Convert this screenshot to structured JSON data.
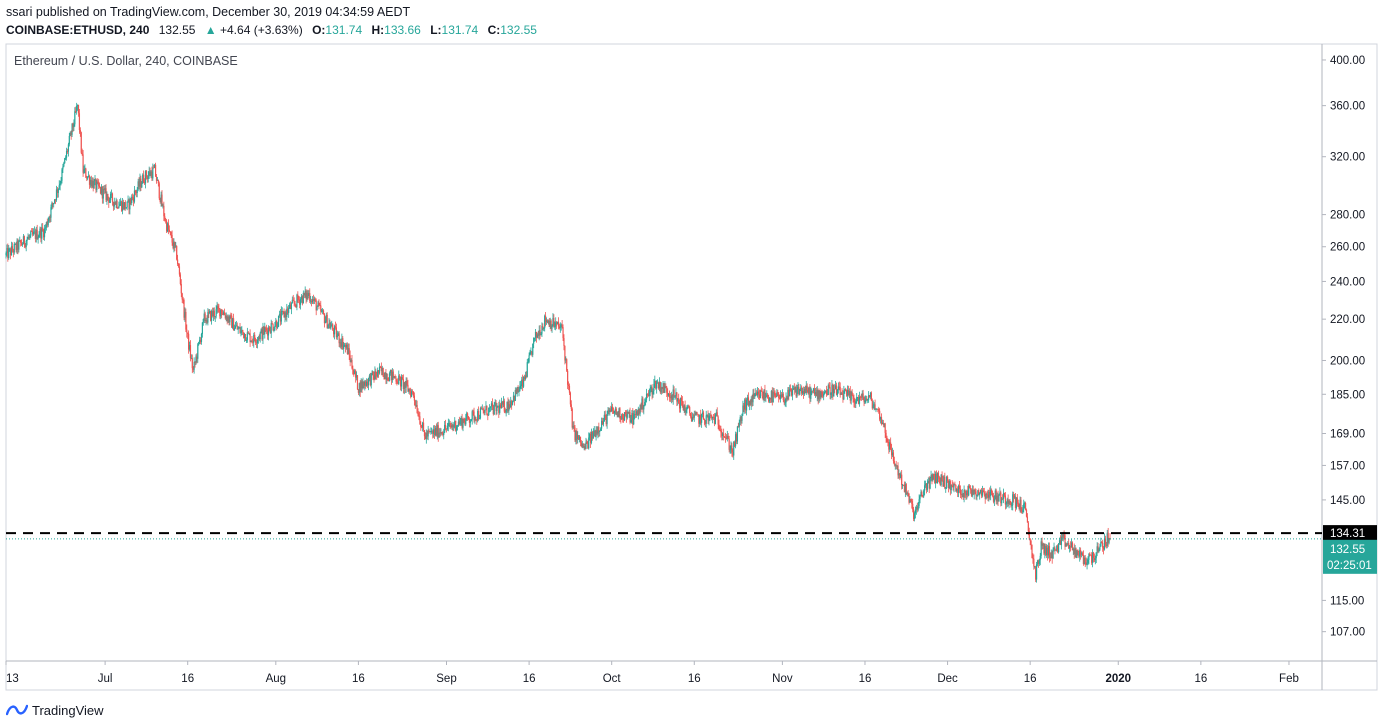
{
  "header": {
    "published": "ssari published on TradingView.com, December 30, 2019 04:34:59 AEDT",
    "symbol": "COINBASE:ETHUSD, 240",
    "last": "132.55",
    "change": "+4.64 (+3.63%)",
    "o_label": "O:",
    "o_value": "131.74",
    "h_label": "H:",
    "h_value": "133.66",
    "l_label": "L:",
    "l_value": "131.74",
    "c_label": "C:",
    "c_value": "132.55"
  },
  "chart_title": "Ethereum / U.S. Dollar, 240, COINBASE",
  "footer": {
    "brand": "TradingView"
  },
  "colors": {
    "up": "#26a69a",
    "down": "#ef5350",
    "resistance_line": "#000000",
    "price_line": "#26a69a"
  },
  "chart_data": {
    "type": "candlestick",
    "scale": "log",
    "ylim": [
      100,
      415
    ],
    "y_ticks": [
      400,
      360,
      320,
      280,
      260,
      240,
      220,
      200,
      185,
      169,
      157,
      145,
      115,
      107
    ],
    "y_tick_labels": [
      "400.00",
      "360.00",
      "320.00",
      "280.00",
      "260.00",
      "240.00",
      "220.00",
      "200.00",
      "185.00",
      "169.00",
      "157.00",
      "145.00",
      "115.00",
      "107.00"
    ],
    "x_range": [
      "2019-06-13",
      "2020-02-07"
    ],
    "x_ticks": [
      {
        "date": "2019-06-13",
        "label": "13"
      },
      {
        "date": "2019-07-01",
        "label": "Jul"
      },
      {
        "date": "2019-07-16",
        "label": "16"
      },
      {
        "date": "2019-08-01",
        "label": "Aug"
      },
      {
        "date": "2019-08-16",
        "label": "16"
      },
      {
        "date": "2019-09-01",
        "label": "Sep"
      },
      {
        "date": "2019-09-16",
        "label": "16"
      },
      {
        "date": "2019-10-01",
        "label": "Oct"
      },
      {
        "date": "2019-10-16",
        "label": "16"
      },
      {
        "date": "2019-11-01",
        "label": "Nov"
      },
      {
        "date": "2019-11-16",
        "label": "16"
      },
      {
        "date": "2019-12-01",
        "label": "Dec"
      },
      {
        "date": "2019-12-16",
        "label": "16"
      },
      {
        "date": "2020-01-01",
        "label": "2020",
        "bold": true
      },
      {
        "date": "2020-01-16",
        "label": "16"
      },
      {
        "date": "2020-02-01",
        "label": "Feb"
      }
    ],
    "approx_close_path": [
      {
        "date": "2019-06-13",
        "close": 255
      },
      {
        "date": "2019-06-17",
        "close": 265
      },
      {
        "date": "2019-06-20",
        "close": 270
      },
      {
        "date": "2019-06-23",
        "close": 305
      },
      {
        "date": "2019-06-26",
        "close": 360
      },
      {
        "date": "2019-06-27",
        "close": 310
      },
      {
        "date": "2019-06-29",
        "close": 300
      },
      {
        "date": "2019-07-02",
        "close": 290
      },
      {
        "date": "2019-07-05",
        "close": 285
      },
      {
        "date": "2019-07-08",
        "close": 305
      },
      {
        "date": "2019-07-10",
        "close": 310
      },
      {
        "date": "2019-07-12",
        "close": 275
      },
      {
        "date": "2019-07-14",
        "close": 255
      },
      {
        "date": "2019-07-16",
        "close": 210
      },
      {
        "date": "2019-07-17",
        "close": 195
      },
      {
        "date": "2019-07-19",
        "close": 220
      },
      {
        "date": "2019-07-22",
        "close": 225
      },
      {
        "date": "2019-07-25",
        "close": 215
      },
      {
        "date": "2019-07-28",
        "close": 210
      },
      {
        "date": "2019-08-01",
        "close": 218
      },
      {
        "date": "2019-08-05",
        "close": 230
      },
      {
        "date": "2019-08-07",
        "close": 233
      },
      {
        "date": "2019-08-10",
        "close": 220
      },
      {
        "date": "2019-08-14",
        "close": 205
      },
      {
        "date": "2019-08-16",
        "close": 188
      },
      {
        "date": "2019-08-20",
        "close": 195
      },
      {
        "date": "2019-08-23",
        "close": 192
      },
      {
        "date": "2019-08-26",
        "close": 185
      },
      {
        "date": "2019-08-28",
        "close": 168
      },
      {
        "date": "2019-09-01",
        "close": 171
      },
      {
        "date": "2019-09-05",
        "close": 175
      },
      {
        "date": "2019-09-08",
        "close": 178
      },
      {
        "date": "2019-09-12",
        "close": 180
      },
      {
        "date": "2019-09-15",
        "close": 190
      },
      {
        "date": "2019-09-17",
        "close": 210
      },
      {
        "date": "2019-09-19",
        "close": 220
      },
      {
        "date": "2019-09-22",
        "close": 215
      },
      {
        "date": "2019-09-24",
        "close": 170
      },
      {
        "date": "2019-09-26",
        "close": 163
      },
      {
        "date": "2019-09-28",
        "close": 170
      },
      {
        "date": "2019-10-01",
        "close": 178
      },
      {
        "date": "2019-10-05",
        "close": 175
      },
      {
        "date": "2019-10-09",
        "close": 190
      },
      {
        "date": "2019-10-12",
        "close": 185
      },
      {
        "date": "2019-10-16",
        "close": 175
      },
      {
        "date": "2019-10-20",
        "close": 175
      },
      {
        "date": "2019-10-23",
        "close": 162
      },
      {
        "date": "2019-10-25",
        "close": 180
      },
      {
        "date": "2019-10-28",
        "close": 185
      },
      {
        "date": "2019-11-01",
        "close": 183
      },
      {
        "date": "2019-11-04",
        "close": 187
      },
      {
        "date": "2019-11-07",
        "close": 185
      },
      {
        "date": "2019-11-10",
        "close": 187
      },
      {
        "date": "2019-11-14",
        "close": 183
      },
      {
        "date": "2019-11-17",
        "close": 183
      },
      {
        "date": "2019-11-19",
        "close": 175
      },
      {
        "date": "2019-11-21",
        "close": 160
      },
      {
        "date": "2019-11-23",
        "close": 150
      },
      {
        "date": "2019-11-25",
        "close": 140
      },
      {
        "date": "2019-11-27",
        "close": 150
      },
      {
        "date": "2019-11-29",
        "close": 153
      },
      {
        "date": "2019-12-03",
        "close": 148
      },
      {
        "date": "2019-12-07",
        "close": 148
      },
      {
        "date": "2019-12-10",
        "close": 146
      },
      {
        "date": "2019-12-13",
        "close": 145
      },
      {
        "date": "2019-12-15",
        "close": 142
      },
      {
        "date": "2019-12-17",
        "close": 122
      },
      {
        "date": "2019-12-18",
        "close": 130
      },
      {
        "date": "2019-12-20",
        "close": 128
      },
      {
        "date": "2019-12-22",
        "close": 132
      },
      {
        "date": "2019-12-24",
        "close": 129
      },
      {
        "date": "2019-12-26",
        "close": 126
      },
      {
        "date": "2019-12-28",
        "close": 128
      },
      {
        "date": "2019-12-30",
        "close": 132.55
      }
    ],
    "horizontal_line": {
      "value": 134.31,
      "style": "dashed",
      "label": "134.31"
    },
    "last_price": {
      "value": 132.55,
      "label": "132.55",
      "countdown": "02:25:01"
    }
  }
}
